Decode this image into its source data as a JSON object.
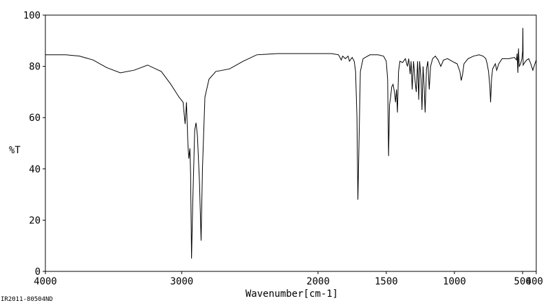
{
  "chart_data": {
    "type": "line",
    "title": "",
    "xlabel": "Wavenumber[cm-1]",
    "ylabel": "%T",
    "xlim": [
      4000,
      400
    ],
    "ylim": [
      0,
      100
    ],
    "x_reversed": true,
    "grid": false,
    "line_color": "#000000",
    "x_ticks": [
      {
        "value": 4000,
        "label": "4000"
      },
      {
        "value": 3000,
        "label": "3000"
      },
      {
        "value": 2000,
        "label": "2000"
      },
      {
        "value": 1500,
        "label": "1500"
      },
      {
        "value": 1000,
        "label": "1000"
      },
      {
        "value": 500,
        "label": "500"
      },
      {
        "value": 400,
        "label": "400"
      }
    ],
    "y_ticks": [
      {
        "value": 0,
        "label": "0"
      },
      {
        "value": 20,
        "label": "20"
      },
      {
        "value": 40,
        "label": "40"
      },
      {
        "value": 60,
        "label": "60"
      },
      {
        "value": 80,
        "label": "80"
      },
      {
        "value": 100,
        "label": "100"
      }
    ],
    "series": [
      {
        "values": [
          [
            4000,
            84.5
          ],
          [
            3850,
            84.5
          ],
          [
            3750,
            84.0
          ],
          [
            3650,
            82.5
          ],
          [
            3550,
            79.5
          ],
          [
            3450,
            77.5
          ],
          [
            3350,
            78.5
          ],
          [
            3250,
            80.5
          ],
          [
            3150,
            78.0
          ],
          [
            3080,
            73.0
          ],
          [
            3020,
            68.0
          ],
          [
            2990,
            66.0
          ],
          [
            2975,
            57.5
          ],
          [
            2965,
            66.0
          ],
          [
            2955,
            50.0
          ],
          [
            2948,
            44.0
          ],
          [
            2940,
            48.0
          ],
          [
            2935,
            38.0
          ],
          [
            2928,
            5.0
          ],
          [
            2920,
            25.0
          ],
          [
            2905,
            55.0
          ],
          [
            2895,
            58.0
          ],
          [
            2885,
            53.0
          ],
          [
            2870,
            35.0
          ],
          [
            2858,
            12.0
          ],
          [
            2848,
            40.0
          ],
          [
            2830,
            68.0
          ],
          [
            2800,
            75.0
          ],
          [
            2750,
            78.0
          ],
          [
            2650,
            79.0
          ],
          [
            2550,
            82.0
          ],
          [
            2450,
            84.5
          ],
          [
            2300,
            85.0
          ],
          [
            2100,
            85.0
          ],
          [
            1900,
            85.0
          ],
          [
            1850,
            84.5
          ],
          [
            1830,
            82.5
          ],
          [
            1820,
            84.0
          ],
          [
            1800,
            83.0
          ],
          [
            1780,
            84.0
          ],
          [
            1770,
            82.0
          ],
          [
            1750,
            83.5
          ],
          [
            1735,
            82.0
          ],
          [
            1725,
            78.0
          ],
          [
            1715,
            60.0
          ],
          [
            1708,
            28.0
          ],
          [
            1700,
            50.0
          ],
          [
            1690,
            78.0
          ],
          [
            1670,
            83.0
          ],
          [
            1620,
            84.5
          ],
          [
            1560,
            84.5
          ],
          [
            1520,
            84.0
          ],
          [
            1500,
            82.0
          ],
          [
            1490,
            75.0
          ],
          [
            1483,
            45.0
          ],
          [
            1476,
            65.0
          ],
          [
            1468,
            68.0
          ],
          [
            1460,
            72.0
          ],
          [
            1450,
            73.0
          ],
          [
            1440,
            70.0
          ],
          [
            1432,
            66.0
          ],
          [
            1425,
            71.0
          ],
          [
            1418,
            62.0
          ],
          [
            1410,
            78.0
          ],
          [
            1400,
            82.0
          ],
          [
            1380,
            81.5
          ],
          [
            1360,
            83.0
          ],
          [
            1345,
            80.0
          ],
          [
            1335,
            83.0
          ],
          [
            1325,
            77.0
          ],
          [
            1318,
            82.0
          ],
          [
            1310,
            71.0
          ],
          [
            1300,
            82.0
          ],
          [
            1290,
            75.0
          ],
          [
            1280,
            70.0
          ],
          [
            1270,
            82.0
          ],
          [
            1262,
            67.0
          ],
          [
            1255,
            82.0
          ],
          [
            1245,
            75.0
          ],
          [
            1238,
            63.0
          ],
          [
            1230,
            80.0
          ],
          [
            1222,
            72.0
          ],
          [
            1215,
            62.0
          ],
          [
            1205,
            79.0
          ],
          [
            1195,
            82.0
          ],
          [
            1185,
            71.0
          ],
          [
            1175,
            80.0
          ],
          [
            1160,
            83.0
          ],
          [
            1140,
            84.0
          ],
          [
            1120,
            82.5
          ],
          [
            1100,
            80.0
          ],
          [
            1080,
            82.5
          ],
          [
            1050,
            83.0
          ],
          [
            1000,
            81.5
          ],
          [
            980,
            81.0
          ],
          [
            960,
            78.0
          ],
          [
            950,
            74.5
          ],
          [
            940,
            77.0
          ],
          [
            930,
            81.0
          ],
          [
            900,
            83.0
          ],
          [
            860,
            84.0
          ],
          [
            820,
            84.5
          ],
          [
            790,
            84.0
          ],
          [
            770,
            83.0
          ],
          [
            760,
            81.0
          ],
          [
            750,
            78.0
          ],
          [
            740,
            72.0
          ],
          [
            735,
            66.0
          ],
          [
            728,
            75.0
          ],
          [
            720,
            79.0
          ],
          [
            700,
            81.0
          ],
          [
            690,
            78.5
          ],
          [
            675,
            81.0
          ],
          [
            650,
            83.0
          ],
          [
            600,
            83.0
          ],
          [
            560,
            83.5
          ],
          [
            545,
            82.5
          ],
          [
            540,
            85.0
          ],
          [
            535,
            77.5
          ],
          [
            530,
            87.0
          ],
          [
            525,
            80.0
          ],
          [
            515,
            81.0
          ],
          [
            505,
            83.0
          ],
          [
            500,
            86.0
          ],
          [
            498,
            95.0
          ],
          [
            496,
            80.5
          ],
          [
            485,
            81.5
          ],
          [
            470,
            82.5
          ],
          [
            455,
            83.0
          ],
          [
            440,
            81.0
          ],
          [
            425,
            78.5
          ],
          [
            410,
            81.0
          ],
          [
            400,
            82.5
          ]
        ]
      }
    ],
    "footer_text": "IR2011-80504ND"
  }
}
